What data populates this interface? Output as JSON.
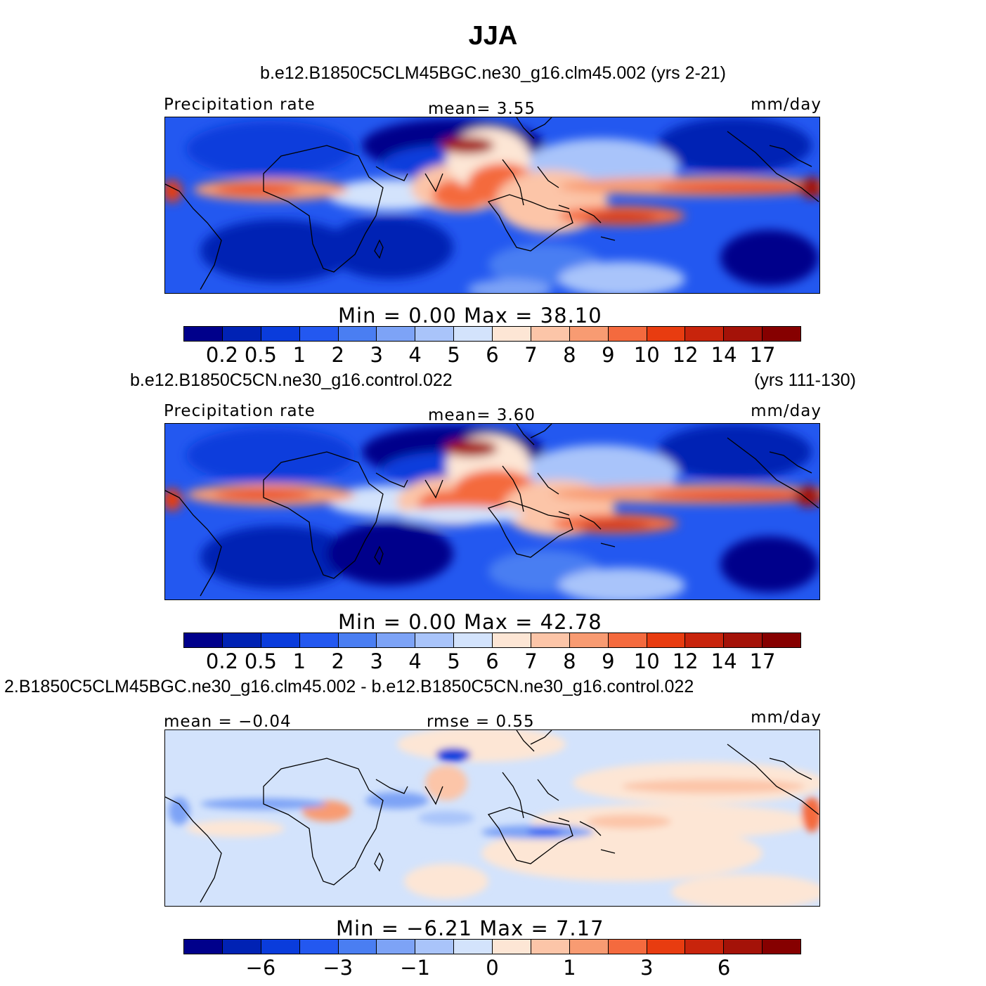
{
  "title": "JJA",
  "scale_colors": [
    "#00008b",
    "#0022b4",
    "#0a3cdc",
    "#2358f0",
    "#4a7ef2",
    "#7da3f6",
    "#a9c4fa",
    "#d3e3fc",
    "#fde6d5",
    "#fcc5a8",
    "#f89b72",
    "#f46a3e",
    "#e83c10",
    "#c8240c",
    "#a41208",
    "#860000"
  ],
  "chart_data": [
    {
      "type": "heatmap",
      "case": "b.e12.B1850C5CLM45BGC.ne30_g16.clm45.002 (yrs 2-21)",
      "years": "",
      "left_label": "Precipitation  rate",
      "center_label": "mean=    3.55",
      "units": "mm/day",
      "min_max": "Min  =     0.00  Max  =   38.10",
      "min": 0.0,
      "max": 38.1,
      "mean": 3.55,
      "colorbar_ticks": [
        "0.2",
        "0.5",
        "1",
        "2",
        "3",
        "4",
        "5",
        "6",
        "7",
        "8",
        "9",
        "10",
        "12",
        "14",
        "17"
      ],
      "region": "Tropical belt, global longitudes (Atlantic / Africa / Indian Ocean / Maritime Continent / Pacific)"
    },
    {
      "type": "heatmap",
      "case": "b.e12.B1850C5CN.ne30_g16.control.022",
      "years": "(yrs 111-130)",
      "left_label": "Precipitation  rate",
      "center_label": "mean=    3.60",
      "units": "mm/day",
      "min_max": "Min  =     0.00  Max  =   42.78",
      "min": 0.0,
      "max": 42.78,
      "mean": 3.6,
      "colorbar_ticks": [
        "0.2",
        "0.5",
        "1",
        "2",
        "3",
        "4",
        "5",
        "6",
        "7",
        "8",
        "9",
        "10",
        "12",
        "14",
        "17"
      ],
      "region": "Tropical belt, global longitudes"
    },
    {
      "type": "heatmap",
      "case": "2.B1850C5CLM45BGC.ne30_g16.clm45.002 - b.e12.B1850C5CN.ne30_g16.control.022",
      "years": "",
      "left_label": "mean  =   −0.04",
      "center_label": "rmse  =     0.55",
      "units": "mm/day",
      "min_max": "Min  =   −6.21  Max  =     7.17",
      "min": -6.21,
      "max": 7.17,
      "mean": -0.04,
      "rmse": 0.55,
      "colorbar_ticks": [
        "−6",
        "−3",
        "−1",
        "0",
        "1",
        "3",
        "6"
      ],
      "region": "Tropical belt, global longitudes (difference field)"
    }
  ]
}
